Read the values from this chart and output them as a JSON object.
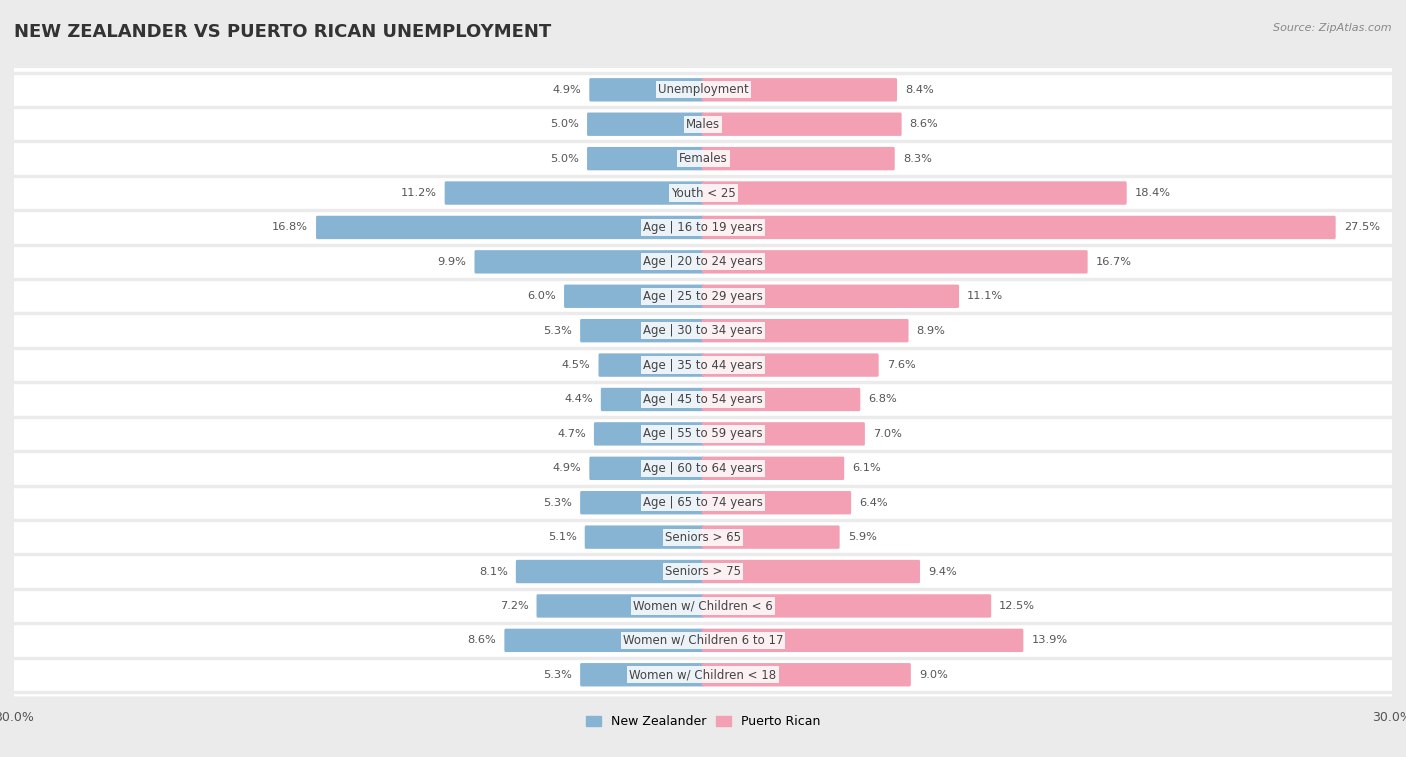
{
  "title": "NEW ZEALANDER VS PUERTO RICAN UNEMPLOYMENT",
  "source": "Source: ZipAtlas.com",
  "categories": [
    "Unemployment",
    "Males",
    "Females",
    "Youth < 25",
    "Age | 16 to 19 years",
    "Age | 20 to 24 years",
    "Age | 25 to 29 years",
    "Age | 30 to 34 years",
    "Age | 35 to 44 years",
    "Age | 45 to 54 years",
    "Age | 55 to 59 years",
    "Age | 60 to 64 years",
    "Age | 65 to 74 years",
    "Seniors > 65",
    "Seniors > 75",
    "Women w/ Children < 6",
    "Women w/ Children 6 to 17",
    "Women w/ Children < 18"
  ],
  "nz_values": [
    4.9,
    5.0,
    5.0,
    11.2,
    16.8,
    9.9,
    6.0,
    5.3,
    4.5,
    4.4,
    4.7,
    4.9,
    5.3,
    5.1,
    8.1,
    7.2,
    8.6,
    5.3
  ],
  "pr_values": [
    8.4,
    8.6,
    8.3,
    18.4,
    27.5,
    16.7,
    11.1,
    8.9,
    7.6,
    6.8,
    7.0,
    6.1,
    6.4,
    5.9,
    9.4,
    12.5,
    13.9,
    9.0
  ],
  "nz_color": "#88b4d3",
  "pr_color": "#f4a0b4",
  "background_color": "#ebebeb",
  "row_bg_color": "#f8f8f8",
  "row_alt_color": "#ffffff",
  "max_val": 30.0,
  "legend_nz": "New Zealander",
  "legend_pr": "Puerto Rican",
  "title_fontsize": 13,
  "label_fontsize": 8.5,
  "value_fontsize": 8.2,
  "tick_fontsize": 9
}
